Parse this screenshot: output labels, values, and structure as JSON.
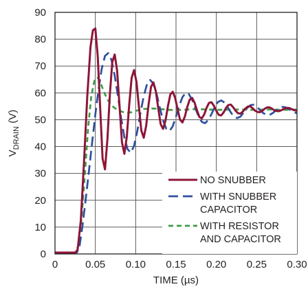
{
  "chart_data": {
    "type": "line",
    "xlabel": "TIME (µs)",
    "ylabel": {
      "main": "V",
      "sub": "DRAIN",
      "suffix": " (V)"
    },
    "xlim": [
      0,
      0.3
    ],
    "ylim": [
      0,
      90
    ],
    "xticks": [
      0,
      0.05,
      0.1,
      0.15,
      0.2,
      0.25,
      0.3
    ],
    "xtick_labels": [
      "0",
      "0.05",
      "0.10",
      "0.15",
      "0.20",
      "0.25",
      "0.30"
    ],
    "yticks": [
      0,
      10,
      20,
      30,
      40,
      50,
      60,
      70,
      80,
      90
    ],
    "ytick_labels": [
      "0",
      "10",
      "20",
      "30",
      "40",
      "50",
      "60",
      "70",
      "80",
      "90"
    ],
    "grid": true,
    "legend_position": "bottom-right",
    "series": [
      {
        "name": "NO SNUBBER",
        "color": "#8e1537",
        "dash": "solid",
        "x": [
          0,
          0.025,
          0.028,
          0.032,
          0.036,
          0.04,
          0.044,
          0.047,
          0.05,
          0.053,
          0.056,
          0.059,
          0.062,
          0.065,
          0.068,
          0.071,
          0.074,
          0.077,
          0.08,
          0.083,
          0.086,
          0.089,
          0.092,
          0.095,
          0.098,
          0.101,
          0.104,
          0.107,
          0.11,
          0.113,
          0.116,
          0.119,
          0.122,
          0.125,
          0.128,
          0.131,
          0.134,
          0.137,
          0.14,
          0.143,
          0.146,
          0.149,
          0.152,
          0.155,
          0.158,
          0.161,
          0.164,
          0.167,
          0.17,
          0.173,
          0.176,
          0.179,
          0.182,
          0.185,
          0.188,
          0.191,
          0.194,
          0.197,
          0.2,
          0.203,
          0.206,
          0.209,
          0.212,
          0.215,
          0.218,
          0.221,
          0.224,
          0.227,
          0.23,
          0.233,
          0.236,
          0.239,
          0.242,
          0.245,
          0.248,
          0.251,
          0.254,
          0.257,
          0.26,
          0.263,
          0.266,
          0.269,
          0.272,
          0.275,
          0.278,
          0.281,
          0.284,
          0.287,
          0.29,
          0.293,
          0.296,
          0.299,
          0.3
        ],
        "y": [
          0.5,
          0.5,
          1.5,
          12.5,
          34.5,
          58.7,
          77.1,
          83.3,
          84.0,
          73.6,
          54.4,
          35.5,
          31.5,
          42.8,
          59.3,
          71.5,
          74.3,
          68.3,
          55.2,
          41.6,
          37.3,
          43.6,
          55.6,
          65.6,
          68.5,
          64.1,
          54.9,
          46.0,
          43.3,
          47.7,
          55.7,
          62.2,
          63.9,
          60.6,
          54.3,
          48.3,
          46.6,
          49.7,
          55.1,
          59.4,
          60.4,
          58.1,
          53.8,
          50.0,
          49.0,
          51.2,
          54.8,
          57.5,
          58.1,
          56.4,
          53.5,
          51.0,
          50.5,
          52.0,
          54.5,
          56.3,
          56.5,
          55.2,
          53.3,
          51.8,
          51.6,
          52.7,
          54.4,
          55.5,
          55.6,
          54.6,
          53.3,
          52.4,
          52.3,
          53.1,
          54.2,
          54.9,
          55.0,
          54.3,
          53.4,
          52.9,
          52.8,
          53.3,
          54.1,
          54.6,
          54.6,
          54.1,
          53.5,
          53.2,
          53.2,
          53.6,
          54.1,
          54.4,
          54.4,
          54.0,
          53.6,
          53.4,
          53.4
        ]
      },
      {
        "name": "WITH SNUBBER CAPACITOR",
        "color": "#2e4f9e",
        "dash": "long-dash",
        "x": [
          0,
          0.027,
          0.03,
          0.034,
          0.038,
          0.042,
          0.046,
          0.05,
          0.054,
          0.058,
          0.062,
          0.066,
          0.07,
          0.074,
          0.078,
          0.082,
          0.086,
          0.09,
          0.094,
          0.098,
          0.102,
          0.106,
          0.11,
          0.114,
          0.118,
          0.122,
          0.126,
          0.13,
          0.134,
          0.138,
          0.142,
          0.146,
          0.15,
          0.154,
          0.158,
          0.162,
          0.166,
          0.17,
          0.174,
          0.178,
          0.182,
          0.186,
          0.19,
          0.194,
          0.198,
          0.202,
          0.206,
          0.21,
          0.214,
          0.218,
          0.222,
          0.226,
          0.23,
          0.234,
          0.238,
          0.242,
          0.246,
          0.25,
          0.254,
          0.258,
          0.262,
          0.266,
          0.27,
          0.274,
          0.278,
          0.282,
          0.286,
          0.29,
          0.294,
          0.298,
          0.3
        ],
        "y": [
          0.5,
          0.5,
          2.0,
          10.3,
          20.2,
          30.7,
          41.4,
          51.9,
          61.4,
          69.1,
          73.8,
          74.8,
          72.3,
          66.5,
          58.8,
          50.6,
          43.5,
          39.0,
          37.7,
          40.3,
          45.7,
          52.6,
          58.8,
          63.2,
          64.8,
          63.4,
          59.6,
          54.4,
          49.7,
          46.6,
          45.8,
          47.6,
          51.2,
          55.2,
          58.4,
          60.0,
          59.5,
          57.4,
          54.3,
          51.2,
          49.2,
          48.7,
          49.9,
          52.1,
          54.7,
          56.6,
          57.2,
          56.4,
          54.7,
          52.7,
          51.1,
          50.6,
          51.2,
          52.7,
          54.3,
          55.4,
          55.6,
          54.9,
          53.7,
          52.5,
          51.8,
          51.8,
          52.5,
          53.5,
          54.4,
          54.8,
          54.6,
          53.9,
          53.1,
          52.6,
          52.5
        ]
      },
      {
        "name": "WITH RESISTOR AND CAPACITOR",
        "color": "#3f9a46",
        "dash": "short-dash",
        "x": [
          0,
          0.025,
          0.029,
          0.033,
          0.037,
          0.041,
          0.045,
          0.049,
          0.053,
          0.057,
          0.061,
          0.065,
          0.069,
          0.073,
          0.077,
          0.081,
          0.085,
          0.09,
          0.095,
          0.1,
          0.11,
          0.12,
          0.13,
          0.14,
          0.15,
          0.16,
          0.17,
          0.18,
          0.19,
          0.2,
          0.21,
          0.22,
          0.23,
          0.24,
          0.25,
          0.26,
          0.27,
          0.28,
          0.29,
          0.3
        ],
        "y": [
          0.5,
          0.5,
          3.1,
          13.5,
          29.6,
          46.9,
          58.8,
          64.7,
          65.7,
          63.3,
          60.1,
          57.6,
          55.8,
          54.6,
          53.7,
          53.2,
          52.8,
          52.6,
          52.8,
          53.3,
          54.0,
          54.2,
          54.0,
          53.7,
          53.6,
          53.7,
          53.9,
          53.9,
          53.8,
          53.7,
          53.7,
          53.8,
          53.8,
          53.7,
          53.7,
          53.8,
          53.8,
          53.7,
          53.7,
          53.8
        ]
      }
    ],
    "legend": [
      {
        "lines": [
          "NO SNUBBER"
        ]
      },
      {
        "lines": [
          "WITH SNUBBER",
          "CAPACITOR"
        ]
      },
      {
        "lines": [
          "WITH RESISTOR",
          "AND CAPACITOR"
        ]
      }
    ]
  }
}
